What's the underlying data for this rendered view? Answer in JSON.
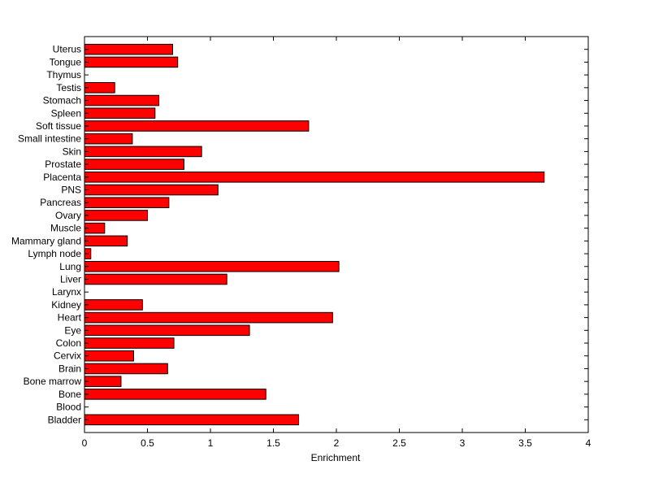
{
  "chart_data": {
    "type": "bar",
    "orientation": "horizontal",
    "categories": [
      "Bladder",
      "Blood",
      "Bone",
      "Bone marrow",
      "Brain",
      "Cervix",
      "Colon",
      "Eye",
      "Heart",
      "Kidney",
      "Larynx",
      "Liver",
      "Lung",
      "Lymph node",
      "Mammary gland",
      "Muscle",
      "Ovary",
      "Pancreas",
      "PNS",
      "Placenta",
      "Prostate",
      "Skin",
      "Small intestine",
      "Soft tissue",
      "Spleen",
      "Stomach",
      "Testis",
      "Thymus",
      "Tongue",
      "Uterus"
    ],
    "values": [
      1.7,
      0,
      1.44,
      0.29,
      0.66,
      0.39,
      0.71,
      1.31,
      1.97,
      0.46,
      0,
      1.13,
      2.02,
      0.05,
      0.34,
      0.16,
      0.5,
      0.67,
      1.06,
      3.65,
      0.79,
      0.93,
      0.38,
      1.78,
      0.56,
      0.59,
      0.24,
      0,
      0.74,
      0.7
    ],
    "xlabel": "Enrichment",
    "ylabel": "",
    "title": "",
    "xlim": [
      0,
      4
    ],
    "xticks": [
      "0",
      "0.5",
      "1",
      "1.5",
      "2",
      "2.5",
      "3",
      "3.5",
      "4"
    ],
    "grid": false,
    "bar_color": "#ff0000",
    "bar_edge_color": "#000000"
  }
}
